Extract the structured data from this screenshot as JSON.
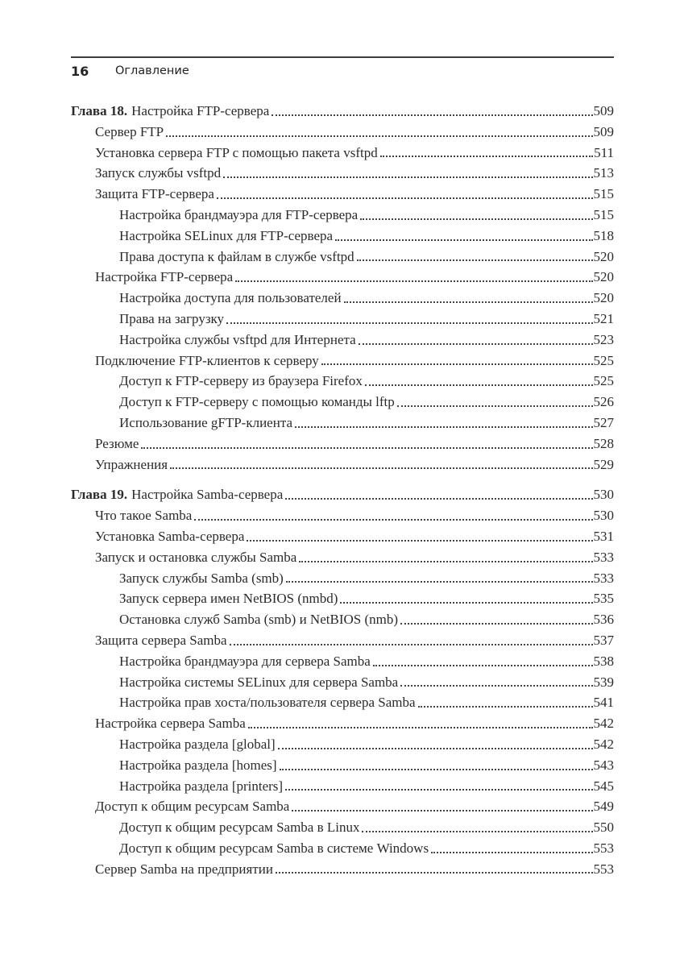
{
  "header": {
    "page_number": "16",
    "title": "Оглавление"
  },
  "colors": {
    "ink": "#2b2b2b",
    "background": "#ffffff"
  },
  "toc": {
    "sections": [
      {
        "chapter": {
          "label": "Глава 18.",
          "title": "Настройка FTP-сервера",
          "page": "509"
        },
        "entries": [
          {
            "level": 1,
            "title": "Сервер FTP",
            "page": "509"
          },
          {
            "level": 1,
            "title": "Установка сервера FTP с помощью пакета vsftpd",
            "page": "511"
          },
          {
            "level": 1,
            "title": "Запуск службы vsftpd",
            "page": "513"
          },
          {
            "level": 1,
            "title": "Защита FTP-сервера",
            "page": "515"
          },
          {
            "level": 2,
            "title": "Настройка брандмауэра для FTP-сервера",
            "page": "515"
          },
          {
            "level": 2,
            "title": "Настройка SELinux для FTP-сервера",
            "page": "518"
          },
          {
            "level": 2,
            "title": "Права доступа к файлам в службе vsftpd",
            "page": "520"
          },
          {
            "level": 1,
            "title": "Настройка FTP-сервера",
            "page": "520"
          },
          {
            "level": 2,
            "title": "Настройка доступа для пользователей",
            "page": "520"
          },
          {
            "level": 2,
            "title": "Права на загрузку",
            "page": "521"
          },
          {
            "level": 2,
            "title": "Настройка службы vsftpd для Интернета",
            "page": "523"
          },
          {
            "level": 1,
            "title": "Подключение FTP-клиентов к серверу",
            "page": "525"
          },
          {
            "level": 2,
            "title": "Доступ к FTP-серверу из браузера Firefox",
            "page": "525"
          },
          {
            "level": 2,
            "title": "Доступ к FTP-серверу с помощью команды lftp",
            "page": "526"
          },
          {
            "level": 2,
            "title": "Использование gFTP-клиента",
            "page": "527"
          },
          {
            "level": 1,
            "title": "Резюме",
            "page": "528"
          },
          {
            "level": 1,
            "title": "Упражнения",
            "page": "529"
          }
        ]
      },
      {
        "chapter": {
          "label": "Глава 19.",
          "title": "Настройка Samba-сервера",
          "page": "530"
        },
        "entries": [
          {
            "level": 1,
            "title": "Что такое Samba",
            "page": "530"
          },
          {
            "level": 1,
            "title": "Установка Samba-сервера",
            "page": "531"
          },
          {
            "level": 1,
            "title": "Запуск и остановка службы Samba",
            "page": "533"
          },
          {
            "level": 2,
            "title": "Запуск службы Samba (smb)",
            "page": "533"
          },
          {
            "level": 2,
            "title": "Запуск сервера имен NetBIOS (nmbd)",
            "page": "535"
          },
          {
            "level": 2,
            "title": "Остановка служб Samba (smb) и NetBIOS (nmb)",
            "page": "536"
          },
          {
            "level": 1,
            "title": "Защита сервера Samba",
            "page": "537"
          },
          {
            "level": 2,
            "title": "Настройка брандмауэра для сервера Samba",
            "page": "538"
          },
          {
            "level": 2,
            "title": "Настройка системы SELinux для сервера Samba",
            "page": "539"
          },
          {
            "level": 2,
            "title": "Настройка прав хоста/пользователя сервера Samba",
            "page": "541"
          },
          {
            "level": 1,
            "title": "Настройка сервера Samba",
            "page": "542"
          },
          {
            "level": 2,
            "title": "Настройка раздела [global]",
            "page": "542"
          },
          {
            "level": 2,
            "title": "Настройка раздела [homes]",
            "page": "543"
          },
          {
            "level": 2,
            "title": "Настройка раздела [printers]",
            "page": "545"
          },
          {
            "level": 1,
            "title": "Доступ к общим ресурсам Samba",
            "page": "549"
          },
          {
            "level": 2,
            "title": "Доступ к общим ресурсам Samba в Linux",
            "page": "550"
          },
          {
            "level": 2,
            "title": "Доступ к общим ресурсам Samba в системе Windows",
            "page": "553"
          },
          {
            "level": 1,
            "title": "Сервер Samba на предприятии",
            "page": "553"
          }
        ]
      }
    ]
  }
}
